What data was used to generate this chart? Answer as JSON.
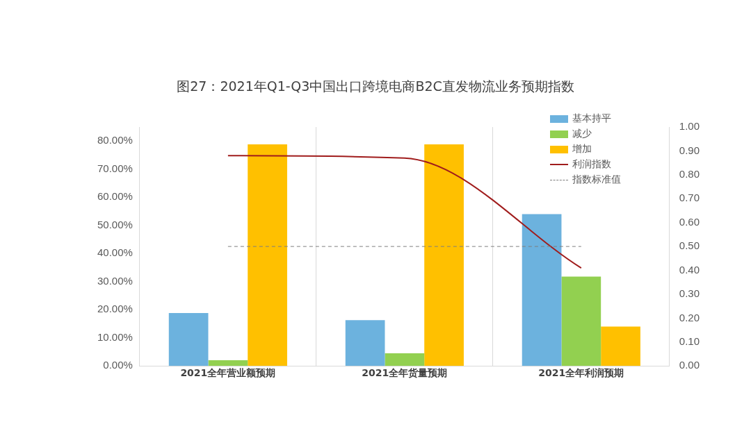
{
  "chart_data": {
    "type": "bar",
    "title": "图27：2021年Q1-Q3中国出口跨境电商B2C直发物流业务预期指数",
    "categories": [
      "2021全年营业额预期",
      "2021全年货量预期",
      "2021全年利润预期"
    ],
    "series": [
      {
        "name": "基本持平",
        "color": "#6cb2de",
        "values": [
          18.8,
          16.3,
          54
        ]
      },
      {
        "name": "减少",
        "color": "#92d050",
        "values": [
          2,
          4.5,
          31.8
        ]
      },
      {
        "name": "增加",
        "color": "#ffc000",
        "values": [
          78.8,
          78.8,
          14
        ]
      },
      {
        "name": "利润指数",
        "type": "line",
        "axis": "y2",
        "color": "#a01c1c",
        "values": [
          0.88,
          0.87,
          0.41
        ]
      }
    ],
    "ylim": [
      0,
      85
    ],
    "yticks": [
      {
        "value": 0,
        "label": "0.00%"
      },
      {
        "value": 10,
        "label": "10.00%"
      },
      {
        "value": 20,
        "label": "20.00%"
      },
      {
        "value": 30,
        "label": "30.00%"
      },
      {
        "value": 40,
        "label": "40.00%"
      },
      {
        "value": 50,
        "label": "50.00%"
      },
      {
        "value": 60,
        "label": "60.00%"
      },
      {
        "value": 70,
        "label": "70.00%"
      },
      {
        "value": 80,
        "label": "80.00%"
      }
    ],
    "y2lim": [
      0,
      1
    ],
    "y2ticks": [
      {
        "value": 0,
        "label": "0.00"
      },
      {
        "value": 0.1,
        "label": "0.10"
      },
      {
        "value": 0.2,
        "label": "0.20"
      },
      {
        "value": 0.3,
        "label": "0.30"
      },
      {
        "value": 0.4,
        "label": "0.40"
      },
      {
        "value": 0.5,
        "label": "0.50"
      },
      {
        "value": 0.6,
        "label": "0.60"
      },
      {
        "value": 0.7,
        "label": "0.70"
      },
      {
        "value": 0.8,
        "label": "0.80"
      },
      {
        "value": 0.9,
        "label": "0.90"
      },
      {
        "value": 1,
        "label": "1.00"
      }
    ],
    "ref_lines": [
      {
        "axis": "y2",
        "value": 0.5,
        "label": "指数标准值",
        "color": "#7f7f7f",
        "line_style": "dashed"
      }
    ],
    "grid": "x",
    "legend": "top right",
    "marker": "none",
    "line_style": "solid"
  }
}
